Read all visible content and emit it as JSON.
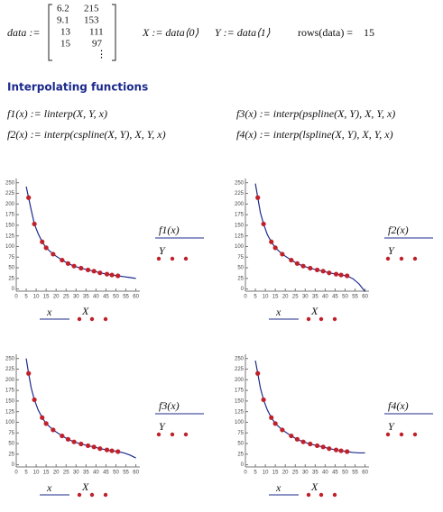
{
  "header": {
    "data_label": "data :=",
    "x_def": "X := data⟨0⟩",
    "y_def": "Y := data⟨1⟩",
    "rows_label": "rows(data) =",
    "rows_value": 15,
    "more_rows": "⋮"
  },
  "section_title": "Interpolating functions",
  "definitions": [
    "f1(x) := linterp(X, Y, x)",
    "f3(x) := interp(pspline(X, Y), X, Y, x)",
    "f2(x) := interp(cspline(X, Y), X, Y, x)",
    "f4(x) := interp(lspline(X, Y), X, Y, x)"
  ],
  "chart_data": [
    {
      "type": "line",
      "xlim": [
        0,
        62
      ],
      "ylim": [
        -5,
        260
      ],
      "xticks": [
        0,
        5,
        10,
        15,
        20,
        25,
        30,
        35,
        40,
        45,
        50,
        55,
        60
      ],
      "yticks": [
        0,
        25,
        50,
        75,
        100,
        125,
        150,
        175,
        200,
        225,
        250
      ],
      "series": [
        {
          "name": "f1(x)",
          "x_name": "x",
          "color": "#1c2a8c",
          "style": "line",
          "x": [
            5,
            6.2,
            7.5,
            9.1,
            11,
            13,
            15,
            18.5,
            23,
            26,
            29,
            32.5,
            36,
            39,
            42,
            45.5,
            48,
            51,
            54,
            57,
            60
          ],
          "values": [
            241,
            215,
            186,
            153,
            130,
            111,
            97,
            82,
            68,
            60,
            54,
            49,
            45,
            42,
            38,
            35,
            33,
            31,
            29,
            27,
            25
          ]
        },
        {
          "name": "Y",
          "x_name": "X",
          "color": "#c0202a",
          "style": "points",
          "x": [
            6.2,
            9.1,
            13,
            15,
            18.5,
            23,
            26,
            29,
            32.5,
            36,
            39,
            42,
            45.5,
            48,
            51
          ],
          "values": [
            215,
            153,
            111,
            97,
            82,
            68,
            60,
            54,
            49,
            45,
            42,
            38,
            35,
            33,
            31
          ]
        }
      ]
    },
    {
      "type": "line",
      "xlim": [
        0,
        62
      ],
      "ylim": [
        -5,
        260
      ],
      "xticks": [
        0,
        5,
        10,
        15,
        20,
        25,
        30,
        35,
        40,
        45,
        50,
        55,
        60
      ],
      "yticks": [
        0,
        25,
        50,
        75,
        100,
        125,
        150,
        175,
        200,
        225,
        250
      ],
      "series": [
        {
          "name": "f2(x)",
          "x_name": "x",
          "color": "#1c2a8c",
          "style": "line",
          "x": [
            5,
            6.2,
            7.5,
            9.1,
            11,
            13,
            15,
            18.5,
            23,
            26,
            29,
            32.5,
            36,
            39,
            42,
            45.5,
            48,
            51,
            54,
            57,
            60
          ],
          "values": [
            248,
            215,
            180,
            153,
            128,
            111,
            97,
            82,
            68,
            60,
            54,
            49,
            45,
            42,
            38,
            35,
            33,
            31,
            24,
            12,
            -6
          ]
        },
        {
          "name": "Y",
          "x_name": "X",
          "color": "#c0202a",
          "style": "points",
          "x": [
            6.2,
            9.1,
            13,
            15,
            18.5,
            23,
            26,
            29,
            32.5,
            36,
            39,
            42,
            45.5,
            48,
            51
          ],
          "values": [
            215,
            153,
            111,
            97,
            82,
            68,
            60,
            54,
            49,
            45,
            42,
            38,
            35,
            33,
            31
          ]
        }
      ]
    },
    {
      "type": "line",
      "xlim": [
        0,
        62
      ],
      "ylim": [
        -5,
        260
      ],
      "xticks": [
        0,
        5,
        10,
        15,
        20,
        25,
        30,
        35,
        40,
        45,
        50,
        55,
        60
      ],
      "yticks": [
        0,
        25,
        50,
        75,
        100,
        125,
        150,
        175,
        200,
        225,
        250
      ],
      "series": [
        {
          "name": "f3(x)",
          "x_name": "x",
          "color": "#1c2a8c",
          "style": "line",
          "x": [
            5,
            6.2,
            7.5,
            9.1,
            11,
            13,
            15,
            18.5,
            23,
            26,
            29,
            32.5,
            36,
            39,
            42,
            45.5,
            48,
            51,
            54,
            57,
            60
          ],
          "values": [
            250,
            215,
            181,
            153,
            129,
            111,
            97,
            82,
            68,
            60,
            54,
            49,
            45,
            42,
            38,
            35,
            33,
            31,
            28,
            23,
            16
          ]
        },
        {
          "name": "Y",
          "x_name": "X",
          "color": "#c0202a",
          "style": "points",
          "x": [
            6.2,
            9.1,
            13,
            15,
            18.5,
            23,
            26,
            29,
            32.5,
            36,
            39,
            42,
            45.5,
            48,
            51
          ],
          "values": [
            215,
            153,
            111,
            97,
            82,
            68,
            60,
            54,
            49,
            45,
            42,
            38,
            35,
            33,
            31
          ]
        }
      ]
    },
    {
      "type": "line",
      "xlim": [
        0,
        62
      ],
      "ylim": [
        -5,
        260
      ],
      "xticks": [
        0,
        5,
        10,
        15,
        20,
        25,
        30,
        35,
        40,
        45,
        50,
        55,
        60
      ],
      "yticks": [
        0,
        25,
        50,
        75,
        100,
        125,
        150,
        175,
        200,
        225,
        250
      ],
      "series": [
        {
          "name": "f4(x)",
          "x_name": "x",
          "color": "#1c2a8c",
          "style": "line",
          "x": [
            5,
            6.2,
            7.5,
            9.1,
            11,
            13,
            15,
            18.5,
            23,
            26,
            29,
            32.5,
            36,
            39,
            42,
            45.5,
            48,
            51,
            54,
            57,
            60
          ],
          "values": [
            245,
            215,
            181,
            153,
            129,
            111,
            97,
            82,
            68,
            60,
            54,
            49,
            45,
            42,
            38,
            35,
            33,
            31,
            29,
            28,
            28
          ]
        },
        {
          "name": "Y",
          "x_name": "X",
          "color": "#c0202a",
          "style": "points",
          "x": [
            6.2,
            9.1,
            13,
            15,
            18.5,
            23,
            26,
            29,
            32.5,
            36,
            39,
            42,
            45.5,
            48,
            51
          ],
          "values": [
            215,
            153,
            111,
            97,
            82,
            68,
            60,
            54,
            49,
            45,
            42,
            38,
            35,
            33,
            31
          ]
        }
      ]
    }
  ]
}
